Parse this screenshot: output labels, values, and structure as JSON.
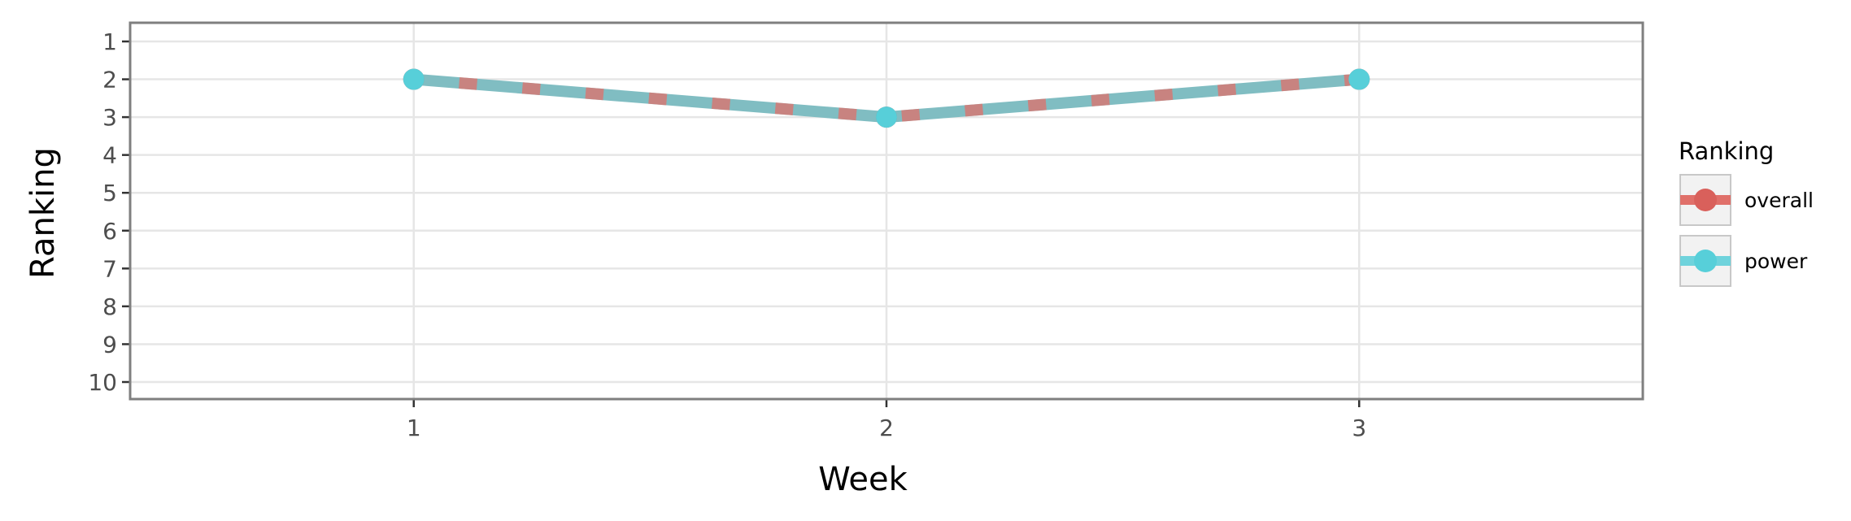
{
  "chart_data": {
    "type": "line",
    "title": "",
    "xlabel": "Week",
    "ylabel": "Ranking",
    "x": [
      1,
      2,
      3
    ],
    "x_ticks": [
      "1",
      "2",
      "3"
    ],
    "xlim": [
      0.4,
      3.6
    ],
    "y_ticks": [
      "1",
      "2",
      "3",
      "4",
      "5",
      "6",
      "7",
      "8",
      "9",
      "10"
    ],
    "ylim": [
      1,
      10
    ],
    "y_reversed": true,
    "grid": true,
    "legend_position": "right",
    "legend_title": "Ranking",
    "series": [
      {
        "name": "overall",
        "values": [
          2,
          3,
          2
        ],
        "color": "#e0706a",
        "style": "dashed"
      },
      {
        "name": "power",
        "values": [
          2,
          3,
          2
        ],
        "color": "#6fd3dc",
        "style": "solid"
      }
    ],
    "colors": {
      "overall_line": "#e0706a",
      "overall_point": "#d9605b",
      "power_line": "#6fd3dc",
      "power_point": "#57cfd9",
      "merged_line": "#80bdc2",
      "grid": "#e6e6e6",
      "panel_border": "#7f7f7f",
      "legend_key_bg": "#f2f2f2",
      "legend_key_border": "#c8c8c8"
    }
  }
}
